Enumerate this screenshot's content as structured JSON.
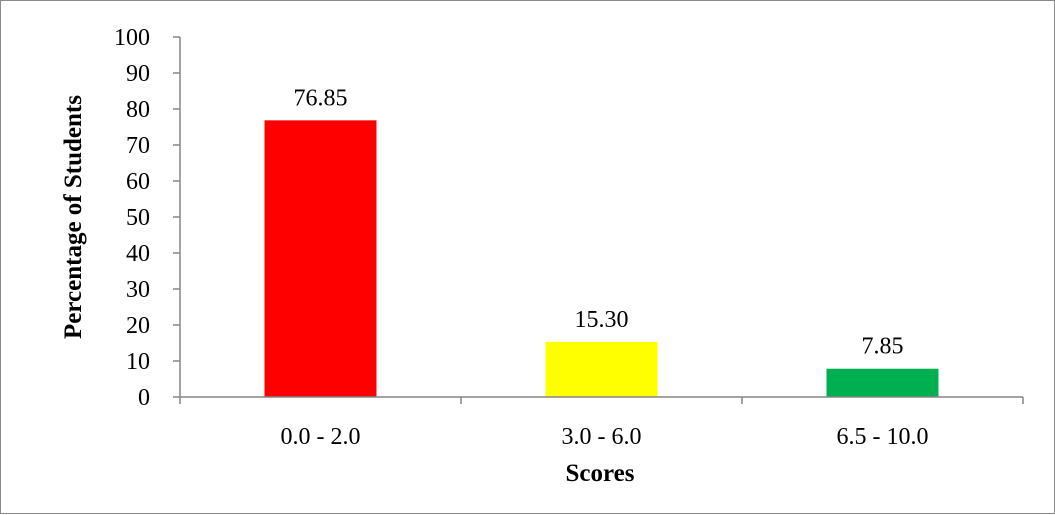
{
  "chart_data": {
    "type": "bar",
    "title": "",
    "xlabel": "Scores",
    "ylabel": "Percentage of Students",
    "categories": [
      "0.0 - 2.0",
      "3.0 - 6.0",
      "6.5 - 10.0"
    ],
    "values": [
      76.85,
      15.3,
      7.85
    ],
    "data_labels": [
      "76.85",
      "15.30",
      "7.85"
    ],
    "bar_colors": [
      "#ff0000",
      "#ffff00",
      "#00b050"
    ],
    "ylim": [
      0,
      100
    ],
    "yticks": [
      0,
      10,
      20,
      30,
      40,
      50,
      60,
      70,
      80,
      90,
      100
    ],
    "grid": false,
    "legend": "none"
  }
}
